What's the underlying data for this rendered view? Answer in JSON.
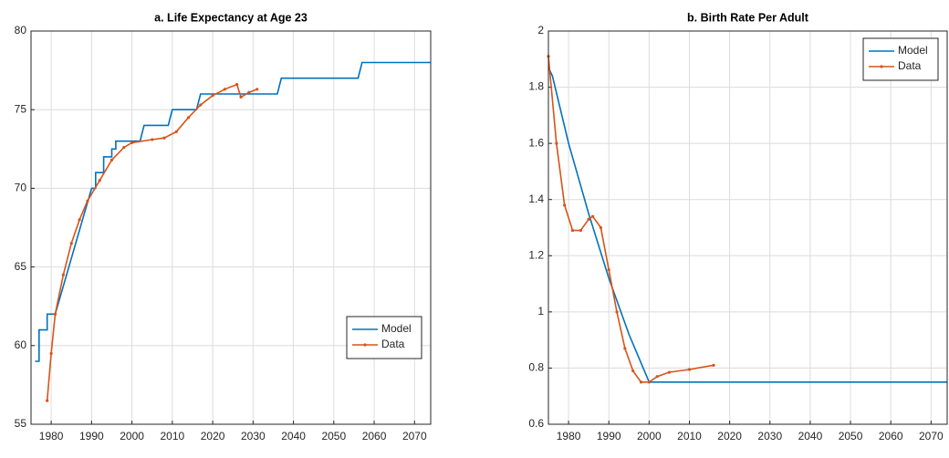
{
  "chart_data": [
    {
      "type": "line",
      "title": "a. Life Expectancy at Age 23",
      "xlim": [
        1975,
        2074
      ],
      "xticks": [
        1980,
        1990,
        2000,
        2010,
        2020,
        2030,
        2040,
        2050,
        2060,
        2070
      ],
      "ylim": [
        55,
        80
      ],
      "yticks": [
        55,
        60,
        65,
        70,
        75,
        80
      ],
      "grid": true,
      "legend": "lower right",
      "series": [
        {
          "name": "Model",
          "color": "#0072bd",
          "marker": false,
          "x": [
            1976,
            1977,
            1977,
            1979,
            1979,
            1981,
            1990,
            1991,
            1991,
            1993,
            1993,
            1995,
            1995,
            1996,
            1996,
            2002,
            2003,
            2009,
            2010,
            2016,
            2017,
            2036,
            2037,
            2056,
            2057,
            2074
          ],
          "values": [
            59,
            59,
            61,
            61,
            62,
            62,
            70,
            70,
            71,
            71,
            72,
            72,
            72.5,
            72.5,
            73,
            73,
            74,
            74,
            75,
            75,
            76,
            76,
            77,
            77,
            78,
            78
          ]
        },
        {
          "name": "Data",
          "color": "#d95319",
          "marker": true,
          "x": [
            1979,
            1980,
            1981,
            1983,
            1985,
            1987,
            1989,
            1992,
            1995,
            1998,
            2000,
            2005,
            2008,
            2011,
            2014,
            2017,
            2020,
            2023,
            2026,
            2027,
            2029,
            2031
          ],
          "values": [
            56.5,
            59.5,
            62,
            64.5,
            66.5,
            68,
            69.2,
            70.5,
            71.8,
            72.6,
            72.9,
            73.1,
            73.2,
            73.6,
            74.5,
            75.3,
            75.9,
            76.3,
            76.6,
            75.8,
            76.1,
            76.3
          ]
        }
      ]
    },
    {
      "type": "line",
      "title": "b. Birth Rate Per Adult",
      "xlim": [
        1975,
        2074
      ],
      "xticks": [
        1980,
        1990,
        2000,
        2010,
        2020,
        2030,
        2040,
        2050,
        2060,
        2070
      ],
      "ylim": [
        0.6,
        2
      ],
      "yticks": [
        0.6,
        0.8,
        1,
        1.2,
        1.4,
        1.6,
        1.8,
        2
      ],
      "grid": true,
      "legend": "upper right",
      "series": [
        {
          "name": "Model",
          "color": "#0072bd",
          "marker": false,
          "x": [
            1975,
            1976,
            1980,
            1985,
            1990,
            1995,
            2000,
            2074
          ],
          "values": [
            1.87,
            1.84,
            1.6,
            1.35,
            1.12,
            0.92,
            0.75,
            0.75
          ]
        },
        {
          "name": "Data",
          "color": "#d95319",
          "marker": true,
          "x": [
            1975,
            1977,
            1979,
            1981,
            1983,
            1985,
            1986,
            1988,
            1990,
            1992,
            1994,
            1996,
            1998,
            2000,
            2002,
            2005,
            2010,
            2016
          ],
          "values": [
            1.91,
            1.6,
            1.38,
            1.29,
            1.29,
            1.33,
            1.34,
            1.3,
            1.15,
            1.0,
            0.87,
            0.79,
            0.75,
            0.75,
            0.77,
            0.785,
            0.795,
            0.81
          ]
        }
      ]
    }
  ]
}
